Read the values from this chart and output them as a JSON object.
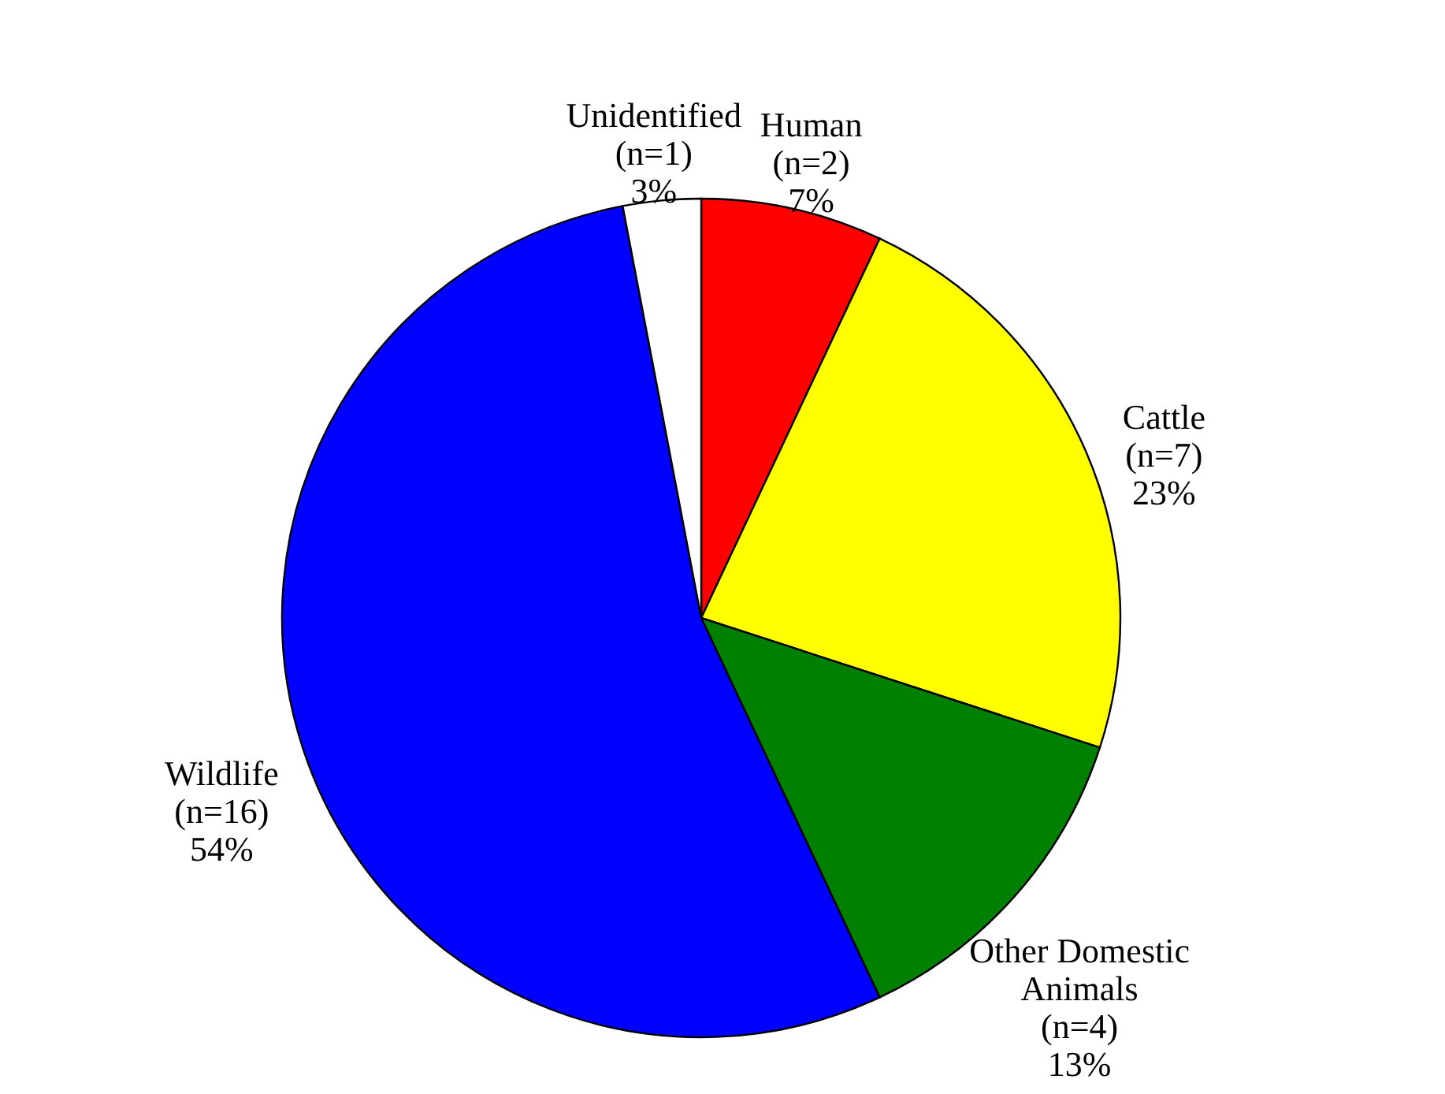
{
  "chart_data": {
    "type": "pie",
    "categories": [
      "Human\n(n=2)",
      "Cattle\n(n=7)",
      "Other Domestic\nAnimals\n(n=4)",
      "Wildlife\n(n=16)",
      "Unidentified\n(n=1)"
    ],
    "values": [
      7,
      23,
      13,
      54,
      3
    ],
    "value_labels": [
      "7%",
      "23%",
      "13%",
      "54%",
      "3%"
    ],
    "colors": [
      "#ff0000",
      "#ffff00",
      "#008000",
      "#0000ff",
      "#ffffff"
    ]
  }
}
